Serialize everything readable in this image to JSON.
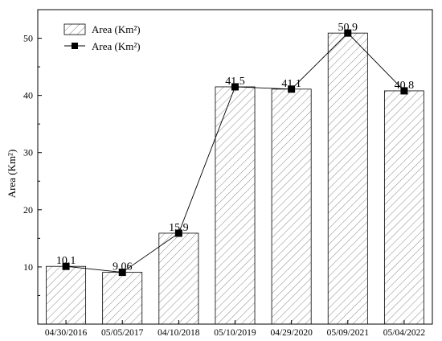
{
  "chart_data": {
    "type": "bar",
    "categories": [
      "04/30/2016",
      "05/05/2017",
      "04/10/2018",
      "05/10/2019",
      "04/29/2020",
      "05/09/2021",
      "05/04/2022"
    ],
    "values": [
      10.1,
      9.06,
      15.9,
      41.5,
      41.1,
      50.9,
      40.8
    ],
    "data_labels": [
      "10.1",
      "9.06",
      "15.9",
      "41.5",
      "41.1",
      "50.9",
      "40.8"
    ],
    "series": [
      {
        "name": "Area (Km²)",
        "kind": "bar",
        "pattern": "diagonal-hatch",
        "values": [
          10.1,
          9.06,
          15.9,
          41.5,
          41.1,
          50.9,
          40.8
        ]
      },
      {
        "name": "Area (Km²)",
        "kind": "line",
        "marker": "square",
        "values": [
          10.1,
          9.06,
          15.9,
          41.5,
          41.1,
          50.9,
          40.8
        ]
      }
    ],
    "title": "",
    "xlabel": "",
    "ylabel": "Area (Km²)",
    "ylim": [
      0,
      55
    ],
    "yticks": [
      10,
      20,
      30,
      40,
      50
    ],
    "grid": false,
    "legend_position": "top-left"
  }
}
